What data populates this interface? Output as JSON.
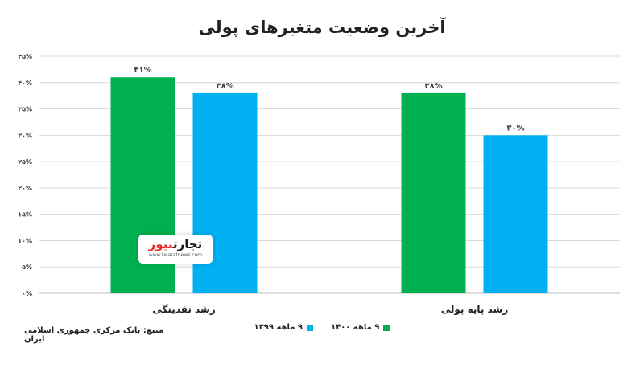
{
  "chart_data": {
    "type": "bar",
    "title": "آخرین وضعیت متغیرهای پولی",
    "categories": [
      "رشد نقدینگی",
      "رشد پایه پولی"
    ],
    "series": [
      {
        "name": "۹ ماهه ۱۴۰۰",
        "values": [
          41,
          38
        ],
        "labels": [
          "۴۱%",
          "۳۸%"
        ],
        "color": "#00b050"
      },
      {
        "name": "۹ ماهه ۱۳۹۹",
        "values": [
          38,
          30
        ],
        "labels": [
          "۳۸%",
          "۳۰%"
        ],
        "color": "#00b0f0"
      }
    ],
    "ylim": [
      0,
      45
    ],
    "yticks": [
      0,
      5,
      10,
      15,
      20,
      25,
      30,
      35,
      40,
      45
    ],
    "ytick_labels": [
      "۰%",
      "۵%",
      "۱۰%",
      "۱۵%",
      "۲۰%",
      "۲۵%",
      "۳۰%",
      "۳۵%",
      "۴۰%",
      "۴۵%"
    ],
    "grid": true,
    "legend_position": "bottom",
    "xlabel": "",
    "ylabel": ""
  },
  "source_text": "منبع: بانک مرکزی جمهوری اسلامی ایران",
  "watermark": {
    "logo_red": "نیوز",
    "logo_dark": "تجارت",
    "url": "www.tejaratnews.com"
  }
}
